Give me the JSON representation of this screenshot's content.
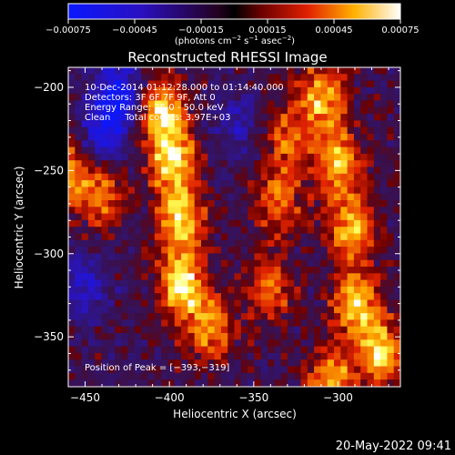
{
  "chart_data": {
    "type": "heatmap",
    "title": "Reconstructed RHESSI Image",
    "xlabel": "Heliocentric X (arcsec)",
    "ylabel": "Heliocentric Y (arcsec)",
    "xlim": [
      -460,
      -263
    ],
    "ylim": [
      -380,
      -188
    ],
    "xticks": [
      -450,
      -400,
      -350,
      -300
    ],
    "xtick_labels": [
      "−450",
      "−400",
      "−350",
      "−300"
    ],
    "yticks": [
      -200,
      -250,
      -300,
      -350
    ],
    "ytick_labels": [
      "−200",
      "−250",
      "−300",
      "−350"
    ],
    "colorbar": {
      "range": [
        -0.00075,
        0.00075
      ],
      "ticks": [
        -0.00075,
        -0.00045,
        -0.00015,
        0.00015,
        0.00045,
        0.00075
      ],
      "tick_labels": [
        "−0.00075",
        "−0.00045",
        "−0.00015",
        "0.00015",
        "0.00045",
        "0.00075"
      ],
      "unit_prefix": "(photons cm",
      "unit_sup1": "−2",
      "unit_mid1": " s",
      "unit_sup2": "−1",
      "unit_mid2": " asec",
      "unit_sup3": "−2",
      "unit_end": ")"
    },
    "colors": {
      "low": "#0b1aff",
      "mid_dark": "#2a0f5a",
      "mid": "#e23a00",
      "high": "#ffff66",
      "max": "#ffffff"
    },
    "annotations": [
      "10-Dec-2014 01:12:28.000 to 01:14:40.000",
      "Detectors: 3F 6F 7F 9F, Att 0",
      "Energy Range: 25.0 - 50.0 keV",
      "Clean     Total counts: 3.97E+03"
    ],
    "peak_label": "Position of Peak = [−393,−319]",
    "peak": [
      -393,
      -319
    ],
    "bright_features": [
      {
        "x": -460,
        "y": -250,
        "intensity": 0.7
      },
      {
        "x": -440,
        "y": -265,
        "intensity": 0.6
      },
      {
        "x": -405,
        "y": -215,
        "intensity": 0.95
      },
      {
        "x": -398,
        "y": -245,
        "intensity": 0.9
      },
      {
        "x": -393,
        "y": -280,
        "intensity": 0.85
      },
      {
        "x": -393,
        "y": -319,
        "intensity": 1.0
      },
      {
        "x": -375,
        "y": -345,
        "intensity": 0.7
      },
      {
        "x": -335,
        "y": -270,
        "intensity": 0.6
      },
      {
        "x": -330,
        "y": -230,
        "intensity": 0.55
      },
      {
        "x": -310,
        "y": -205,
        "intensity": 0.8
      },
      {
        "x": -300,
        "y": -245,
        "intensity": 0.85
      },
      {
        "x": -292,
        "y": -285,
        "intensity": 0.8
      },
      {
        "x": -290,
        "y": -330,
        "intensity": 0.85
      },
      {
        "x": -275,
        "y": -360,
        "intensity": 0.9
      },
      {
        "x": -305,
        "y": -375,
        "intensity": 0.75
      },
      {
        "x": -340,
        "y": -320,
        "intensity": 0.55
      }
    ],
    "dark_features": [
      {
        "x": -430,
        "y": -205,
        "intensity": -0.9
      },
      {
        "x": -440,
        "y": -230,
        "intensity": -0.6
      },
      {
        "x": -360,
        "y": -220,
        "intensity": -0.4
      },
      {
        "x": -450,
        "y": -320,
        "intensity": -0.5
      }
    ]
  },
  "footer": {
    "timestamp": "20-May-2022 09:41"
  }
}
